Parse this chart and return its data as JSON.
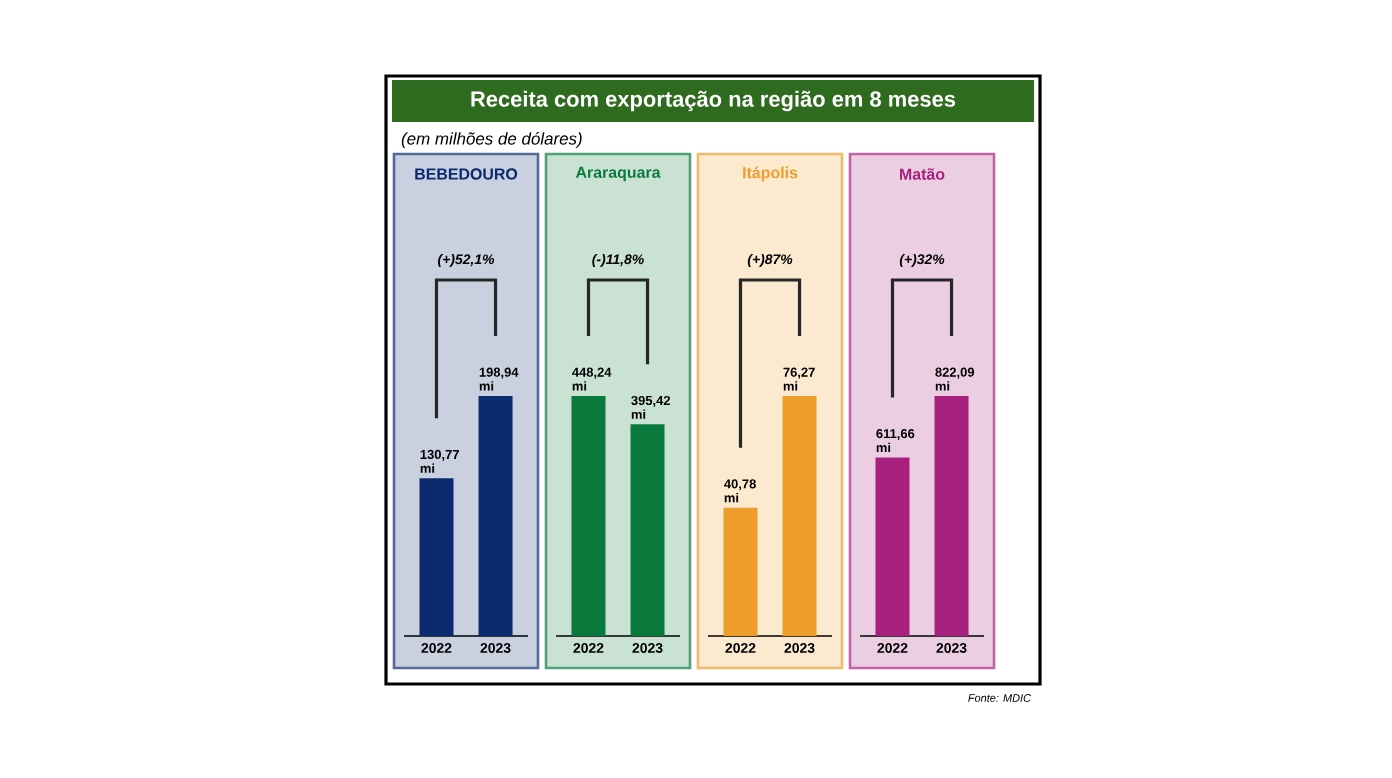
{
  "chart_data": [
    {
      "type": "other",
      "title": "Receita com exportação na região em 8 meses",
      "subtitle": "(em milhões de dólares)",
      "annotations": [
        "Fonte: MDIC"
      ]
    },
    {
      "type": "bar",
      "title": "BEBEDOURO",
      "categories": [
        "2022",
        "2023"
      ],
      "values": [
        130.77,
        198.94
      ],
      "value_labels": [
        "130,77 mi",
        "198,94 mi"
      ],
      "color": "#0b2a6f",
      "annotations": [
        "(+)52,1%"
      ]
    },
    {
      "type": "bar",
      "title": "Araraquara",
      "categories": [
        "2022",
        "2023"
      ],
      "values": [
        448.24,
        395.42
      ],
      "value_labels": [
        "448,24 mi",
        "395,42 mi"
      ],
      "color": "#0a7a3c",
      "annotations": [
        "(-)11,8%"
      ]
    },
    {
      "type": "bar",
      "title": "Itápolis",
      "categories": [
        "2022",
        "2023"
      ],
      "values": [
        40.78,
        76.27
      ],
      "value_labels": [
        "40,78 mi",
        "76,27 mi"
      ],
      "color": "#ee9c2a",
      "annotations": [
        "(+)87%"
      ]
    },
    {
      "type": "bar",
      "title": "Matão",
      "categories": [
        "2022",
        "2023"
      ],
      "values": [
        611.66,
        822.09
      ],
      "value_labels": [
        "611,66 mi",
        "822,09 mi"
      ],
      "color": "#a8207e",
      "annotations": [
        "(+)32%"
      ]
    }
  ]
}
